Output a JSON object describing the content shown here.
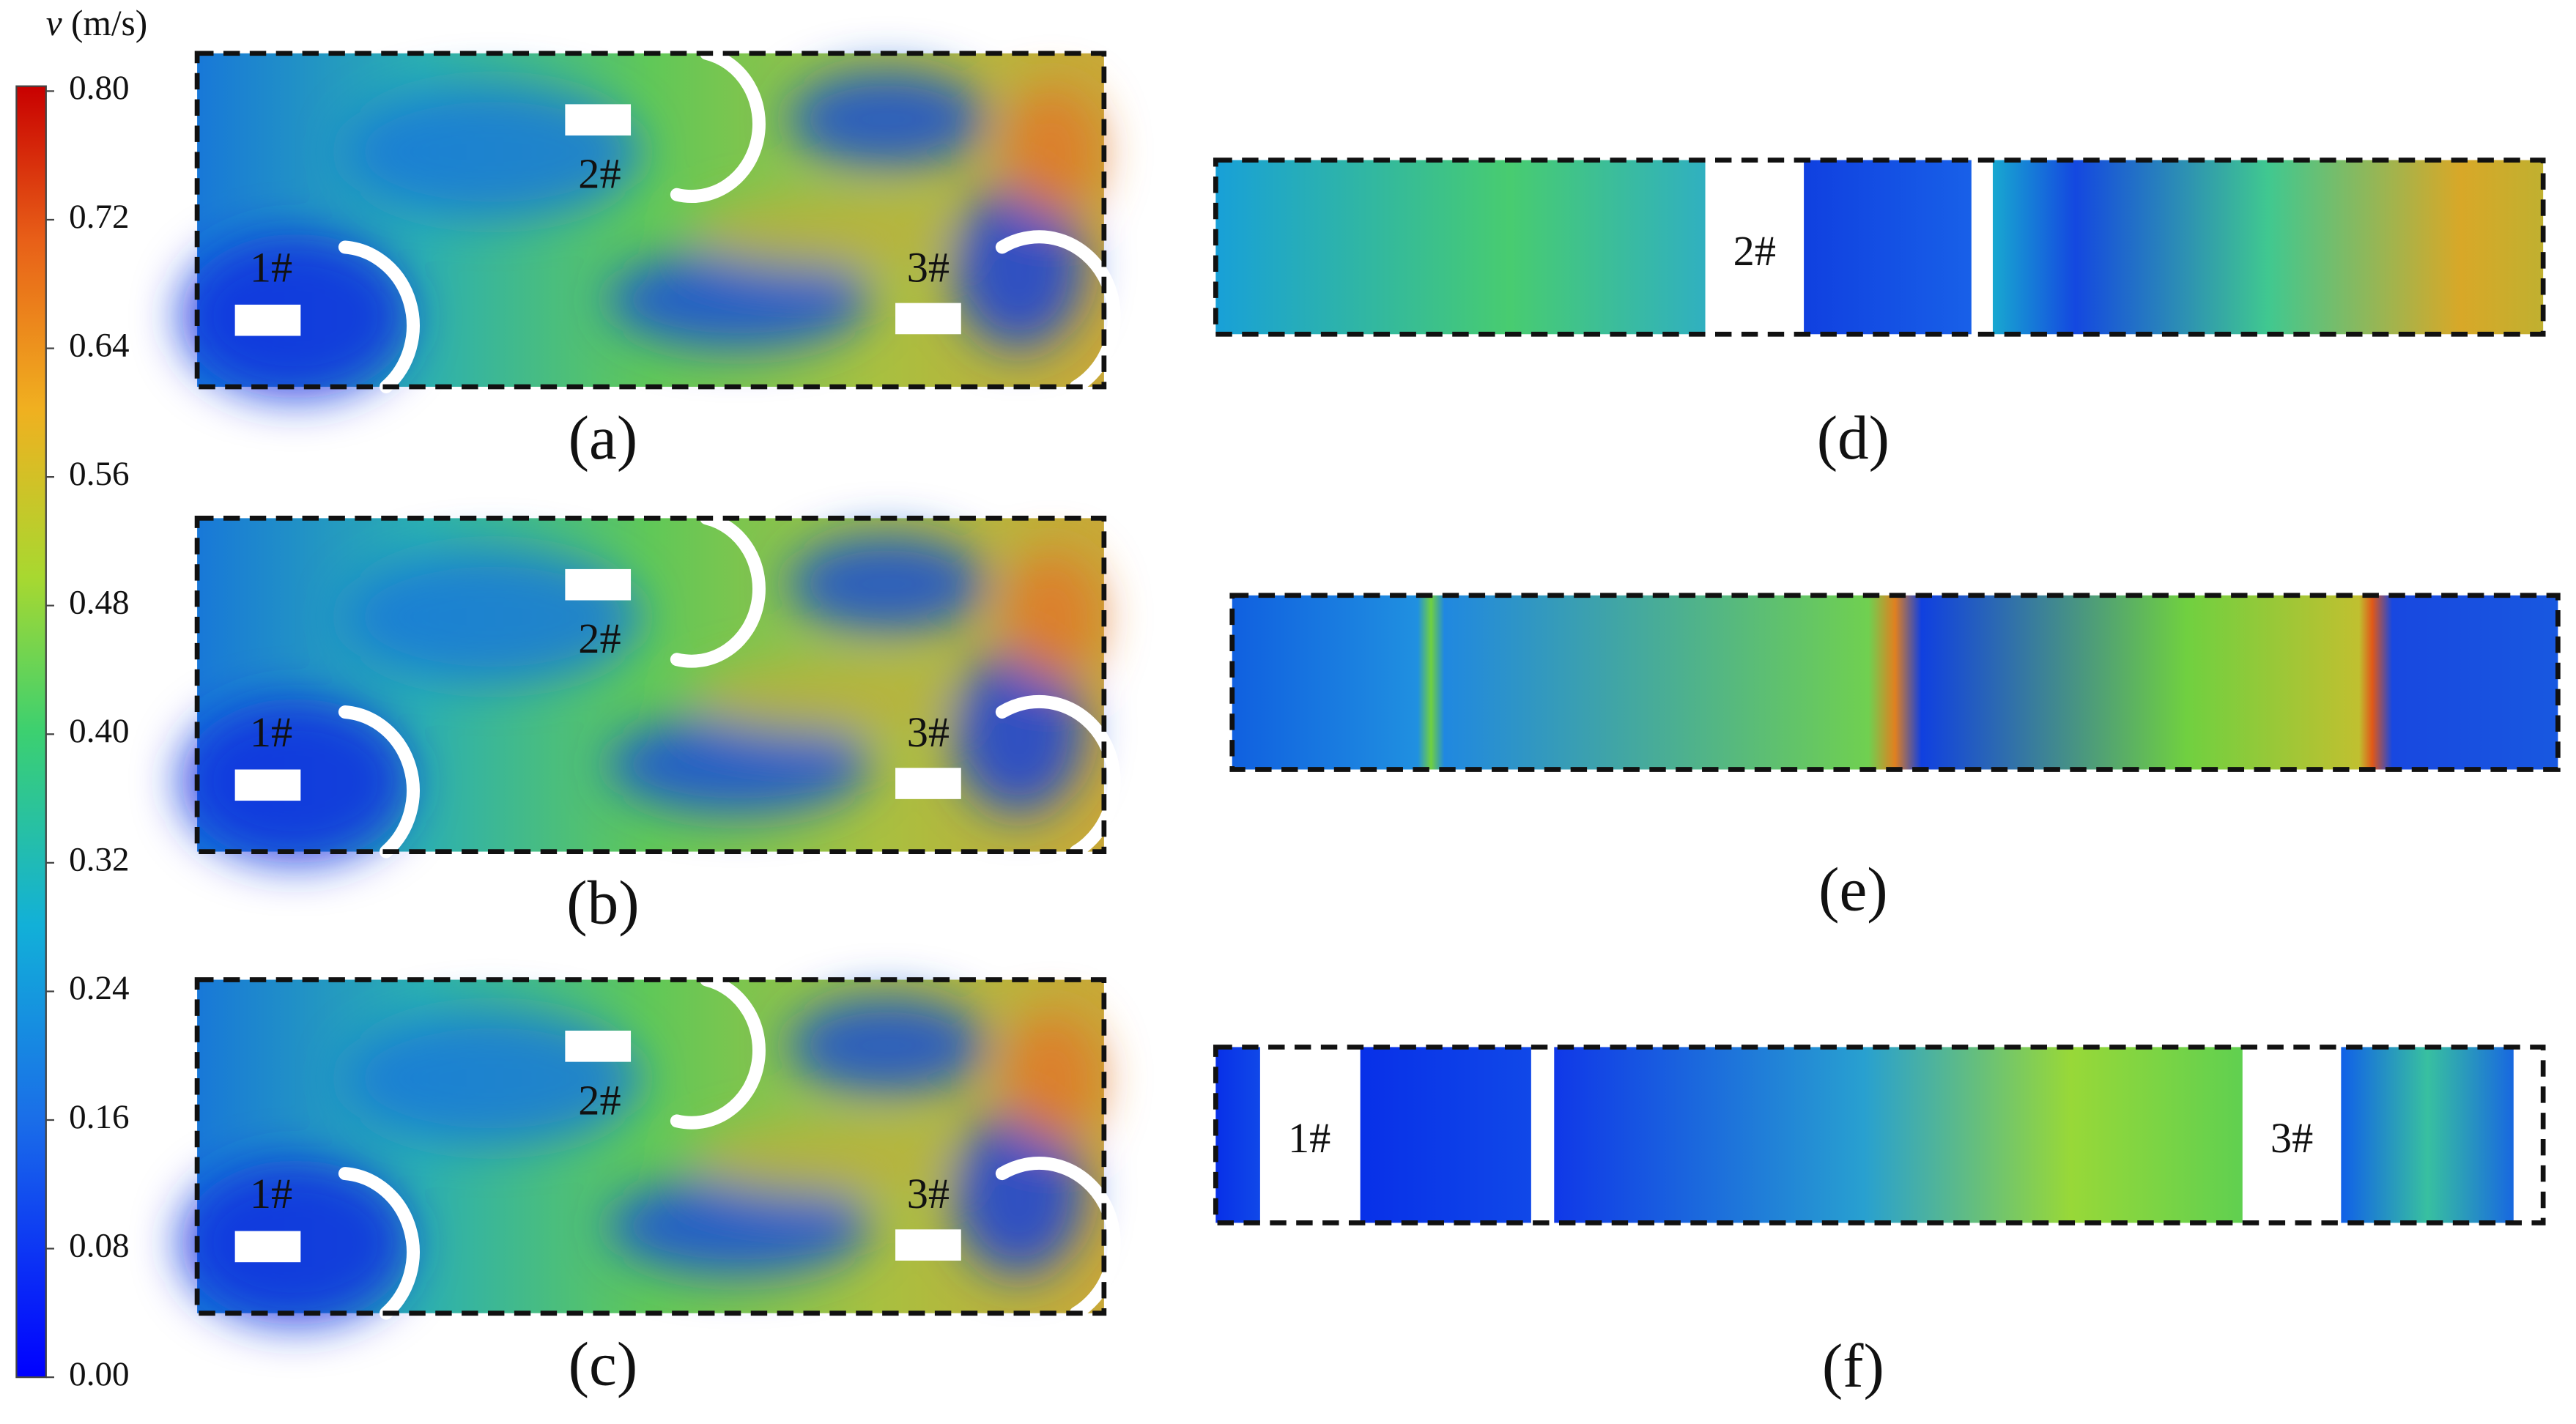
{
  "colorbar": {
    "symbol": "v",
    "unit": "(m/s)",
    "range": [
      0,
      0.8
    ],
    "ticks": [
      {
        "value": 0,
        "label": "0.00"
      },
      {
        "value": 0.08,
        "label": "0.08"
      },
      {
        "value": 0.16,
        "label": "0.16"
      },
      {
        "value": 0.24,
        "label": "0.24"
      },
      {
        "value": 0.32,
        "label": "0.32"
      },
      {
        "value": 0.4,
        "label": "0.40"
      },
      {
        "value": 0.48,
        "label": "0.48"
      },
      {
        "value": 0.56,
        "label": "0.56"
      },
      {
        "value": 0.64,
        "label": "0.64"
      },
      {
        "value": 0.72,
        "label": "0.72"
      },
      {
        "value": 0.8,
        "label": "0.80"
      }
    ]
  },
  "panels": [
    {
      "label": "(a)",
      "devices": [
        "1#",
        "2#",
        "3#"
      ]
    },
    {
      "label": "(b)",
      "devices": [
        "1#",
        "2#",
        "3#"
      ]
    },
    {
      "label": "(c)",
      "devices": [
        "1#",
        "2#",
        "3#"
      ]
    }
  ],
  "strips": [
    {
      "label": "(d)",
      "devices": [
        "2#"
      ]
    },
    {
      "label": "(e)"
    },
    {
      "label": "(f)",
      "devices": [
        "1#",
        "3#"
      ]
    }
  ]
}
